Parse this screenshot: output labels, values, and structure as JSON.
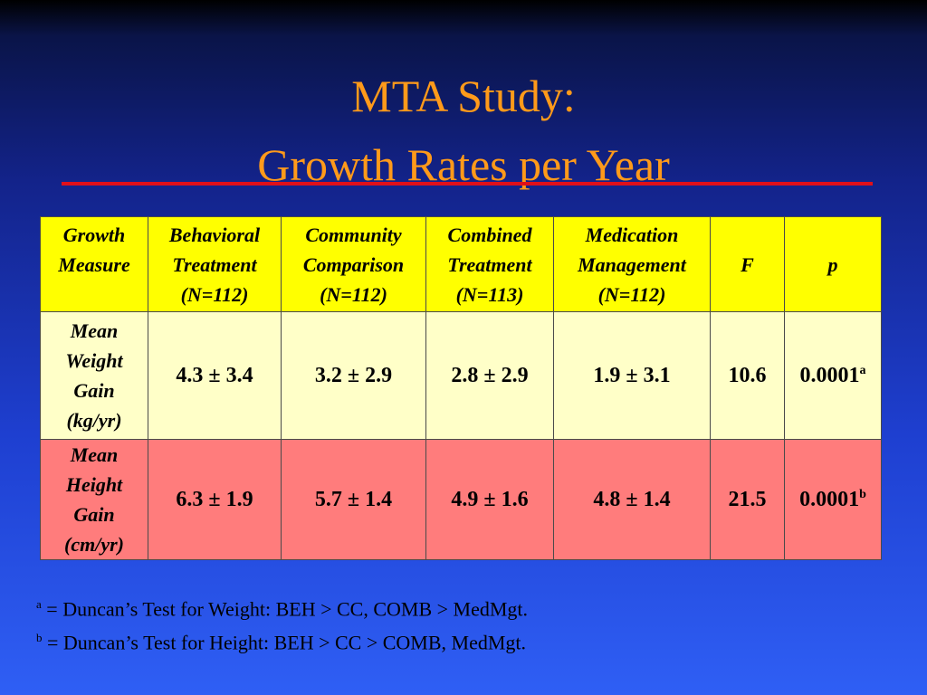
{
  "slide": {
    "title_line1": "MTA Study:",
    "title_line2": "Growth Rates per Year"
  },
  "table": {
    "headers": [
      {
        "line1": "Growth",
        "line2": "Measure",
        "line3": ""
      },
      {
        "line1": "Behavioral",
        "line2": "Treatment",
        "line3": "(N=112)"
      },
      {
        "line1": "Community",
        "line2": "Comparison",
        "line3": "(N=112)"
      },
      {
        "line1": "Combined",
        "line2": "Treatment",
        "line3": "(N=113)"
      },
      {
        "line1": "Medication",
        "line2": "Management",
        "line3": "(N=112)"
      },
      {
        "line1": "",
        "line2": "F",
        "line3": ""
      },
      {
        "line1": "",
        "line2": "p",
        "line3": ""
      }
    ],
    "rows": [
      {
        "measure": [
          "Mean",
          "Weight",
          "Gain",
          "(kg/yr)"
        ],
        "beh": "4.3 ± 3.4",
        "cc": "3.2 ± 2.9",
        "comb": "2.8 ± 2.9",
        "med": "1.9 ± 3.1",
        "f": "10.6",
        "p": "0.0001",
        "p_sup": "a"
      },
      {
        "measure": [
          "Mean",
          "Height",
          "Gain",
          "(cm/yr)"
        ],
        "beh": "6.3 ± 1.9",
        "cc": "5.7 ± 1.4",
        "comb": "4.9 ± 1.6",
        "med": "4.8 ± 1.4",
        "f": "21.5",
        "p": "0.0001",
        "p_sup": "b"
      }
    ]
  },
  "footnotes": [
    {
      "mark": "a",
      "text": "= Duncan’s Test for Weight:  BEH > CC, COMB > MedMgt."
    },
    {
      "mark": "b",
      "text": "= Duncan’s Test for Height:  BEH > CC > COMB, MedMgt."
    }
  ],
  "colors": {
    "title": "#ff9a1a",
    "rule": "#e0101a",
    "header_bg": "#ffff00",
    "weight_row_bg": "#ffffc8",
    "height_row_bg": "#ff7c7c"
  }
}
